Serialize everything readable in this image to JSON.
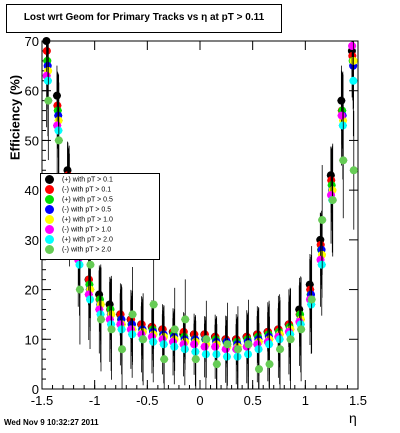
{
  "title": "Lost wrt Geom for Primary Tracks vs   η at pT > 0.11",
  "timestamp": "Wed Nov  9 10:32:27 2011",
  "chart_data": {
    "type": "scatter",
    "title": "Lost wrt Geom for Primary Tracks vs   η at pT > 0.11",
    "xlabel": "η",
    "ylabel": "Efficiency (%)",
    "xlim": [
      -1.5,
      1.5
    ],
    "ylim": [
      0,
      70
    ],
    "xticks": [
      "-1.5",
      "-1",
      "-0.5",
      "0",
      "0.5",
      "1",
      "1.5"
    ],
    "yticks": [
      "0",
      "10",
      "20",
      "30",
      "40",
      "50",
      "60",
      "70"
    ],
    "grid": false,
    "legend_placement": "center-left",
    "x": [
      -1.45,
      -1.35,
      -1.25,
      -1.15,
      -1.05,
      -0.95,
      -0.85,
      -0.75,
      -0.65,
      -0.55,
      -0.45,
      -0.35,
      -0.25,
      -0.15,
      -0.05,
      0.05,
      0.15,
      0.25,
      0.35,
      0.45,
      0.55,
      0.65,
      0.75,
      0.85,
      0.95,
      1.05,
      1.15,
      1.25,
      1.35,
      1.45
    ],
    "series": [
      {
        "name": "(+) with pT > 0.1",
        "color": "#000000",
        "values": [
          70,
          59,
          44,
          30,
          22,
          19,
          17,
          15,
          14,
          13,
          12.5,
          12,
          11.5,
          11,
          11,
          11,
          10.5,
          10,
          10,
          10.5,
          11,
          11.5,
          12,
          13,
          16,
          21,
          30,
          43,
          58,
          68
        ]
      },
      {
        "name": "(-) with pT > 0.1",
        "color": "#ff0000",
        "values": [
          68,
          57,
          43,
          29,
          22,
          18,
          16,
          15,
          14,
          13,
          12.5,
          12,
          11.5,
          11.5,
          11,
          11,
          10.5,
          10,
          10,
          10.5,
          11,
          11.5,
          12,
          13,
          15,
          20,
          29,
          42,
          56,
          67
        ]
      },
      {
        "name": "(+) with pT > 0.5",
        "color": "#00dd00",
        "values": [
          66,
          56,
          41,
          28,
          21,
          18,
          16,
          14,
          13,
          12,
          12,
          11,
          11,
          10.5,
          10,
          10,
          10,
          9.5,
          9.5,
          10,
          10.5,
          11,
          11.5,
          12.5,
          15,
          19,
          28,
          41,
          56,
          66
        ]
      },
      {
        "name": "(-) with pT > 0.5",
        "color": "#0000ff",
        "values": [
          65,
          55,
          40,
          27,
          20,
          17,
          15,
          14,
          13,
          12,
          11.5,
          11,
          10.5,
          10,
          10,
          10,
          9.5,
          9.5,
          9,
          9.5,
          10,
          10.5,
          11,
          12,
          14,
          19,
          28,
          40,
          55,
          65
        ]
      },
      {
        "name": "(+) with pT > 1.0",
        "color": "#ffff00",
        "values": [
          64,
          54,
          40,
          27,
          20,
          17,
          15,
          13,
          12,
          11.5,
          11,
          10.5,
          10,
          9.5,
          9.5,
          9,
          9,
          8.5,
          8.5,
          9,
          9.5,
          10,
          11,
          12,
          14,
          18,
          27,
          40,
          54,
          66
        ]
      },
      {
        "name": "(-) with pT > 1.0",
        "color": "#ff00ff",
        "values": [
          63,
          53,
          39,
          26,
          19,
          16,
          14,
          13,
          12,
          11,
          10.5,
          10,
          9.5,
          9,
          9,
          8.5,
          8.5,
          8,
          8,
          8.5,
          9,
          9.5,
          10.5,
          11.5,
          13.5,
          18,
          26,
          39,
          55,
          69
        ]
      },
      {
        "name": "(+) with pT > 2.0",
        "color": "#00ffff",
        "values": [
          62,
          52,
          38,
          25,
          18,
          15,
          13,
          12,
          11,
          10,
          9.5,
          9,
          8.5,
          8,
          7.5,
          7,
          7,
          6.5,
          6.5,
          7,
          8,
          9,
          10,
          11,
          13,
          17,
          25,
          38,
          53,
          62
        ]
      },
      {
        "name": "(-) with pT > 2.0",
        "color": "#66cc55",
        "values": [
          58,
          50,
          36,
          20,
          25,
          14,
          12,
          8,
          15,
          10,
          17,
          6,
          12,
          14,
          6,
          10,
          5,
          9,
          8,
          9,
          4,
          5,
          8,
          10,
          12,
          18,
          34,
          38,
          46,
          44
        ]
      }
    ]
  }
}
